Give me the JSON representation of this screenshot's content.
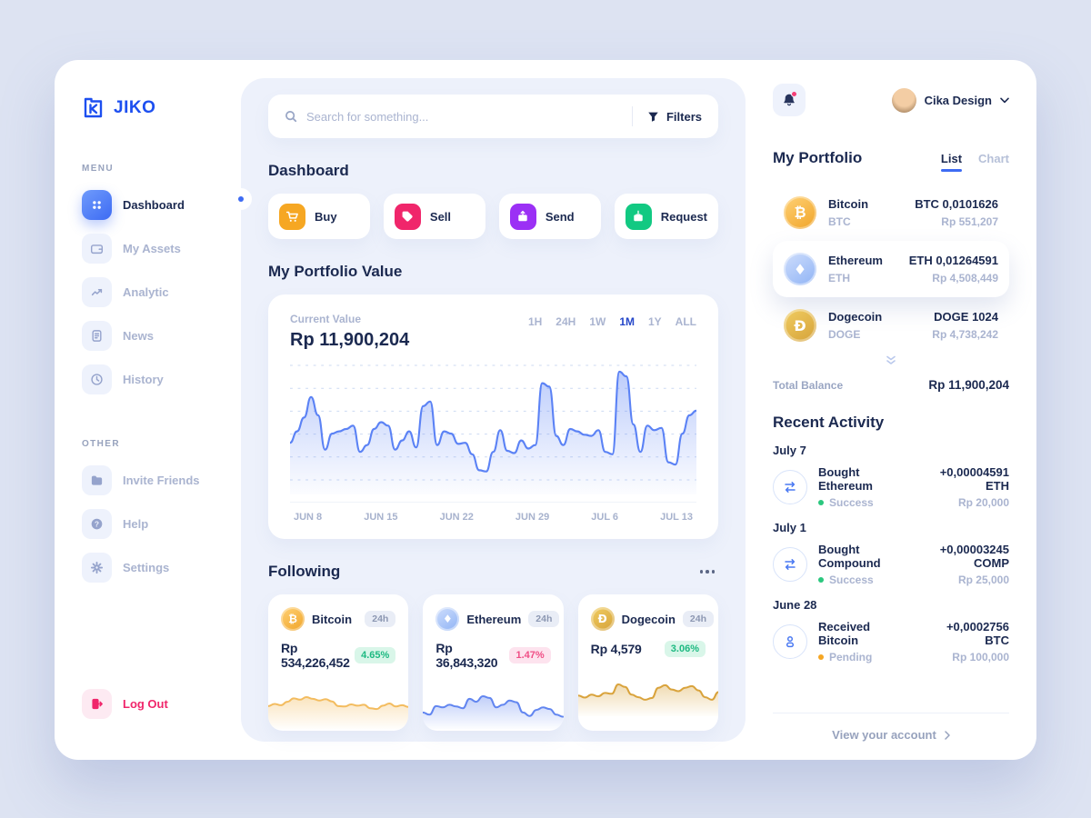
{
  "app": {
    "logo_text": "JIKO"
  },
  "sidebar": {
    "menu_label": "MENU",
    "menu": [
      {
        "label": "Dashboard",
        "active": true
      },
      {
        "label": "My Assets"
      },
      {
        "label": "Analytic"
      },
      {
        "label": "News"
      },
      {
        "label": "History"
      }
    ],
    "other_label": "OTHER",
    "other": [
      {
        "label": "Invite Friends"
      },
      {
        "label": "Help"
      },
      {
        "label": "Settings"
      }
    ],
    "logout_label": "Log Out"
  },
  "search": {
    "placeholder": "Search for something...",
    "filters_label": "Filters"
  },
  "dashboard": {
    "title": "Dashboard",
    "actions": [
      {
        "label": "Buy"
      },
      {
        "label": "Sell"
      },
      {
        "label": "Send"
      },
      {
        "label": "Request"
      }
    ]
  },
  "portfolio_value": {
    "title": "My Portfolio Value",
    "current_value_label": "Current Value",
    "current_value": "Rp 11,900,204",
    "ranges": [
      "1H",
      "24H",
      "1W",
      "1M",
      "1Y",
      "ALL"
    ],
    "active_range": "1M"
  },
  "following": {
    "title": "Following",
    "cards": [
      {
        "name": "Bitcoin",
        "period": "24h",
        "price": "Rp 534,226,452",
        "change": "4.65%",
        "direction": "up"
      },
      {
        "name": "Ethereum",
        "period": "24h",
        "price": "Rp 36,843,320",
        "change": "1.47%",
        "direction": "down"
      },
      {
        "name": "Dogecoin",
        "period": "24h",
        "price": "Rp 4,579",
        "change": "3.06%",
        "direction": "up"
      }
    ]
  },
  "topbar": {
    "user_name": "Cika Design"
  },
  "my_portfolio": {
    "title": "My Portfolio",
    "tabs": [
      "List",
      "Chart"
    ],
    "active_tab": "List",
    "assets": [
      {
        "name": "Bitcoin",
        "symbol": "BTC",
        "amount": "BTC 0,0101626",
        "value": "Rp 551,207"
      },
      {
        "name": "Ethereum",
        "symbol": "ETH",
        "amount": "ETH 0,01264591",
        "value": "Rp 4,508,449",
        "highlight": true
      },
      {
        "name": "Dogecoin",
        "symbol": "DOGE",
        "amount": "DOGE 1024",
        "value": "Rp 4,738,242"
      }
    ],
    "total_balance_label": "Total Balance",
    "total_balance": "Rp 11,900,204"
  },
  "recent_activity": {
    "title": "Recent Activity",
    "groups": [
      {
        "date": "July 7",
        "items": [
          {
            "title": "Bought Ethereum",
            "status": "Success",
            "amount": "+0,00004591 ETH",
            "value": "Rp 20,000",
            "icon": "exchange-icon"
          }
        ]
      },
      {
        "date": "July 1",
        "items": [
          {
            "title": "Bought Compound",
            "status": "Success",
            "amount": "+0,00003245 COMP",
            "value": "Rp 25,000",
            "icon": "exchange-icon"
          }
        ]
      },
      {
        "date": "June 28",
        "items": [
          {
            "title": "Received Bitcoin",
            "status": "Pending",
            "amount": "+0,0002756 BTC",
            "value": "Rp 100,000",
            "icon": "person-icon"
          }
        ]
      }
    ],
    "footer_link": "View your account"
  },
  "colors": {
    "accent_blue": "#3d6bf3",
    "chart_blue": "#5b82f5",
    "buy": "#f6a723",
    "sell": "#f0266b",
    "send": "#9b30f5",
    "request": "#12c982",
    "success": "#2bc77e",
    "pending": "#f5a623",
    "change_up": "#1db981",
    "change_down": "#f04e86",
    "logout": "#f0266b"
  },
  "coin_glyphs": {
    "btc": "₿",
    "eth": "♦",
    "doge": "Ð"
  },
  "chart_data": [
    {
      "type": "area",
      "title": "My Portfolio Value",
      "current_value": 11900204,
      "currency": "Rp",
      "x_ticks": [
        "JUN 8",
        "JUN 15",
        "JUN 22",
        "JUN 29",
        "JUL 6",
        "JUL 13"
      ],
      "ylim": [
        0,
        100
      ],
      "grid": true,
      "legend": false,
      "color": "#5b82f5",
      "stroke_width": 2.2,
      "values": [
        34,
        44,
        56,
        74,
        58,
        28,
        42,
        44,
        46,
        49,
        26,
        32,
        46,
        52,
        49,
        28,
        36,
        44,
        30,
        66,
        70,
        32,
        44,
        42,
        33,
        34,
        24,
        10,
        9,
        26,
        45,
        27,
        25,
        36,
        29,
        32,
        86,
        83,
        40,
        32,
        46,
        44,
        41,
        40,
        45,
        26,
        24,
        96,
        92,
        50,
        26,
        49,
        45,
        47,
        17,
        15,
        42,
        58,
        62
      ]
    },
    {
      "type": "area",
      "title": "Bitcoin 24h sparkline",
      "ylim": [
        0,
        100
      ],
      "grid": false,
      "color": "#f3bc5f",
      "stroke_width": 2,
      "values": [
        45,
        50,
        47,
        55,
        63,
        60,
        66,
        62,
        58,
        61,
        56,
        45,
        44,
        49,
        46,
        48,
        40,
        38,
        46,
        51,
        44,
        47,
        43
      ]
    },
    {
      "type": "area",
      "title": "Ethereum 24h sparkline",
      "ylim": [
        0,
        100
      ],
      "grid": false,
      "color": "#6286f0",
      "stroke_width": 2,
      "values": [
        30,
        25,
        45,
        42,
        48,
        44,
        40,
        62,
        55,
        68,
        64,
        42,
        48,
        58,
        54,
        30,
        22,
        36,
        42,
        38,
        25,
        20
      ]
    },
    {
      "type": "area",
      "title": "Dogecoin 24h sparkline",
      "ylim": [
        0,
        100
      ],
      "grid": false,
      "color": "#d9a33c",
      "stroke_width": 2,
      "values": [
        40,
        35,
        42,
        38,
        46,
        44,
        66,
        60,
        42,
        36,
        30,
        34,
        58,
        64,
        54,
        50,
        58,
        62,
        52,
        36,
        30,
        48
      ]
    }
  ]
}
